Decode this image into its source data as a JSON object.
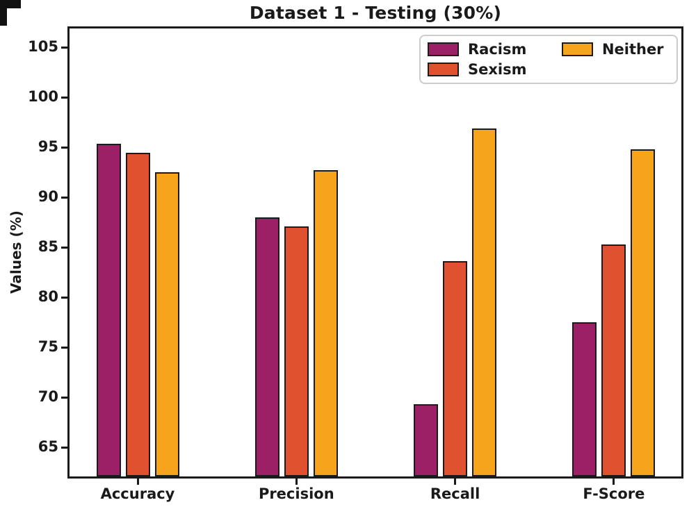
{
  "chart_data": {
    "type": "bar",
    "title": "Dataset 1 - Testing (30%)",
    "categories": [
      "Accuracy",
      "Precision",
      "Recall",
      "F-Score"
    ],
    "series": [
      {
        "name": "Racism",
        "color": "#9B2065",
        "values": [
          95.4,
          88.0,
          69.3,
          77.5
        ]
      },
      {
        "name": "Sexism",
        "color": "#E0512F",
        "values": [
          94.5,
          87.1,
          83.6,
          85.3
        ]
      },
      {
        "name": "Neither",
        "color": "#F7A41D",
        "values": [
          92.5,
          92.7,
          96.9,
          94.8
        ]
      }
    ],
    "xlabel": "",
    "ylabel": "Values (%)",
    "ylim": [
      62.1,
      106.9
    ],
    "yticks": [
      65,
      70,
      75,
      80,
      85,
      90,
      95,
      100,
      105
    ],
    "legend": {
      "position": "upper-right",
      "columns": 2
    },
    "grid": false,
    "bar_edge_color": "#1B1B1B",
    "axis_color": "#1A1A1A"
  }
}
